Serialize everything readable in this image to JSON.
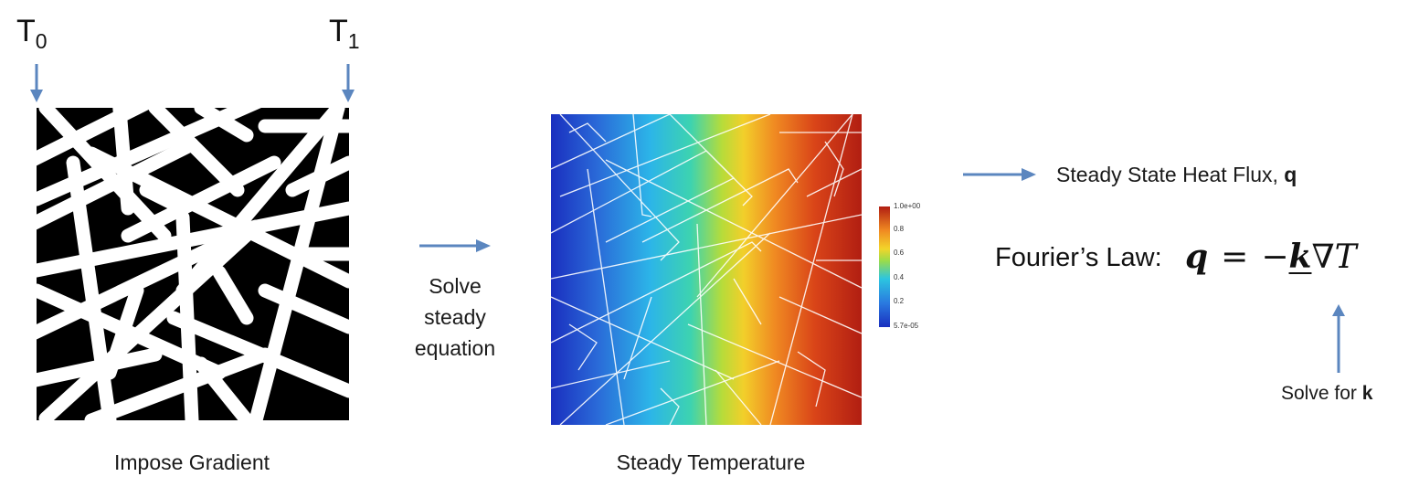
{
  "left_panel": {
    "t0_base": "T",
    "t0_sub": "0",
    "t1_base": "T",
    "t1_sub": "1",
    "caption": "Impose Gradient"
  },
  "middle_step": {
    "line1": "Solve",
    "line2": "steady",
    "line3": "equation"
  },
  "center_panel": {
    "caption": "Steady Temperature",
    "colorbar": {
      "max_label": "1.0e+00",
      "ticks": [
        "0.8",
        "0.6",
        "0.4",
        "0.2"
      ],
      "min_label": "5.7e-05"
    }
  },
  "right_panel": {
    "heat_flux_text": "Steady State Heat Flux, ",
    "heat_flux_symbol": "q",
    "law_label": "Fourier’s Law:",
    "eq_lhs": "q",
    "eq_op": "=",
    "eq_minus": "−",
    "eq_k": "k",
    "eq_grad": "∇T",
    "solve_text": "Solve for ",
    "solve_symbol": "k"
  },
  "colors": {
    "arrow": "#5b86bf",
    "background": "#ffffff",
    "fiber": "#ffffff",
    "pore": "#000000"
  }
}
